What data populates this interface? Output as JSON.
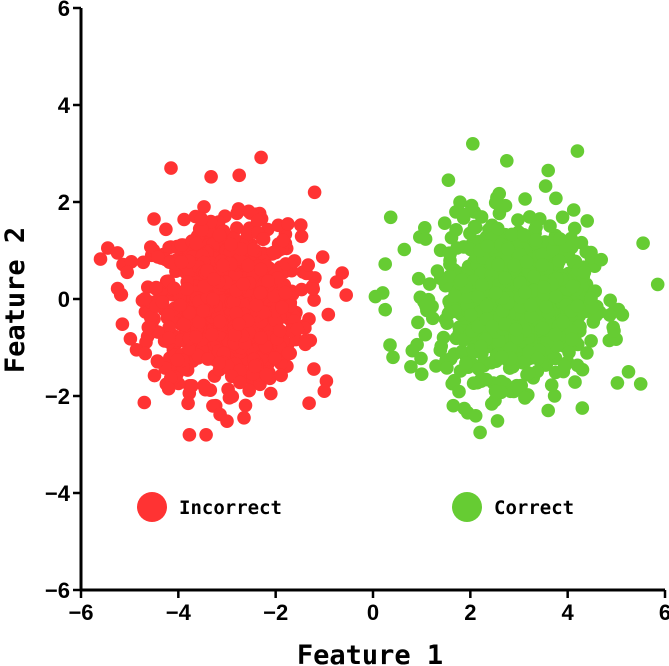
{
  "chart_data": {
    "type": "scatter",
    "title": "",
    "xlabel": "Feature 1",
    "ylabel": "Feature 2",
    "xlim": [
      -6,
      6
    ],
    "ylim": [
      -6,
      6
    ],
    "xticks": [
      "−6",
      "−4",
      "−2",
      "0",
      "2",
      "4",
      "6"
    ],
    "yticks": [
      "−6",
      "−4",
      "−2",
      "0",
      "2",
      "4",
      "6"
    ],
    "grid": false,
    "legend_placement": "inside-bottom",
    "series": [
      {
        "name": "Incorrect",
        "color": "#ff3333",
        "center": [
          -3.0,
          -0.1
        ],
        "spread": [
          0.75,
          0.8
        ],
        "count": 1000,
        "points": [
          [
            -4.15,
            2.7
          ],
          [
            -2.3,
            2.92
          ],
          [
            -1.2,
            2.2
          ],
          [
            -2.75,
            2.55
          ],
          [
            -5.45,
            1.05
          ],
          [
            -5.25,
            0.95
          ],
          [
            -5.05,
            0.55
          ],
          [
            -0.55,
            0.08
          ],
          [
            -5.15,
            -0.52
          ],
          [
            -4.2,
            -1.85
          ],
          [
            -3.0,
            -2.52
          ],
          [
            -2.65,
            -2.45
          ],
          [
            -1.0,
            -1.9
          ],
          [
            -3.8,
            -2.15
          ],
          [
            -2.1,
            -1.95
          ],
          [
            -4.5,
            1.65
          ],
          [
            -0.75,
            0.35
          ]
        ]
      },
      {
        "name": "Correct",
        "color": "#66cc33",
        "center": [
          2.9,
          0.0
        ],
        "spread": [
          0.75,
          0.8
        ],
        "count": 1000,
        "points": [
          [
            2.05,
            3.2
          ],
          [
            4.2,
            3.05
          ],
          [
            3.6,
            2.65
          ],
          [
            2.75,
            2.85
          ],
          [
            1.55,
            2.45
          ],
          [
            5.55,
            1.15
          ],
          [
            5.85,
            0.3
          ],
          [
            0.25,
            0.72
          ],
          [
            0.35,
            -0.95
          ],
          [
            0.25,
            -0.22
          ],
          [
            0.05,
            0.05
          ],
          [
            5.25,
            -1.5
          ],
          [
            5.5,
            -1.75
          ],
          [
            2.2,
            -2.75
          ],
          [
            1.65,
            -2.2
          ],
          [
            3.6,
            -2.3
          ],
          [
            4.3,
            -2.25
          ],
          [
            1.0,
            -1.55
          ]
        ]
      }
    ]
  }
}
